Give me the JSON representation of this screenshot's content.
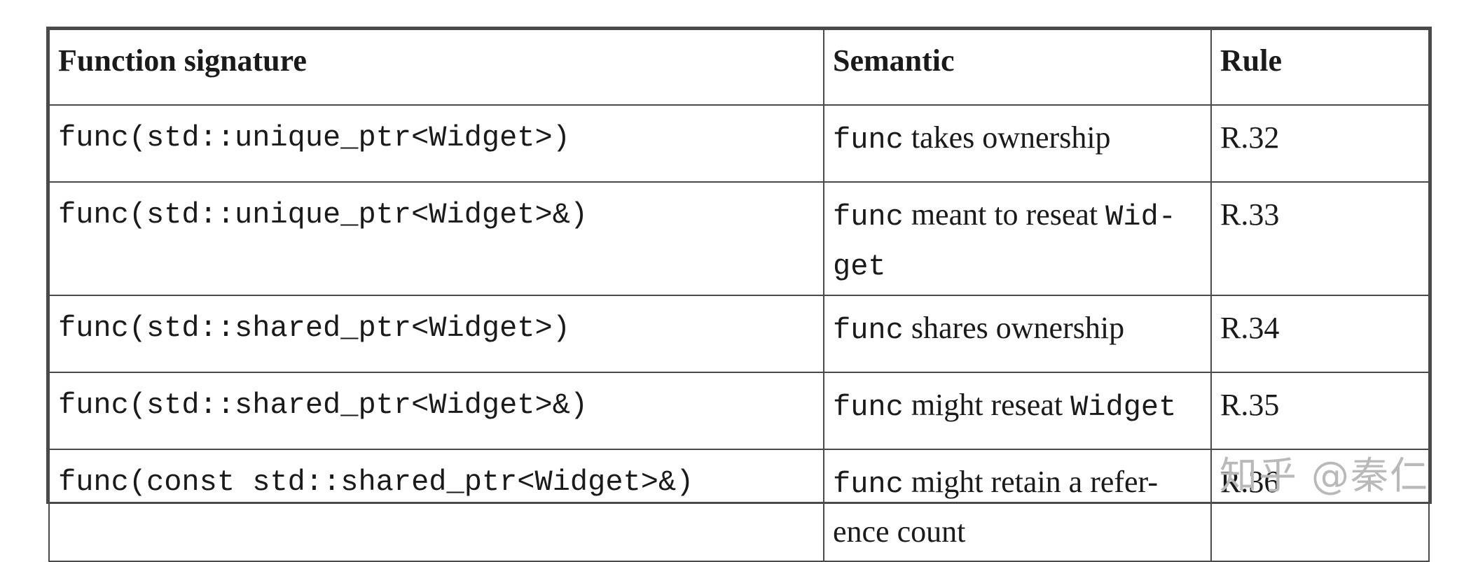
{
  "table": {
    "headers": [
      "Function signature",
      "Semantic",
      "Rule"
    ],
    "rows": [
      {
        "signature": "func(std::unique_ptr<Widget>)",
        "semantic_mono": "func",
        "semantic_text": " takes ownership",
        "semantic_mono2": "",
        "rule": "R.32"
      },
      {
        "signature": "func(std::unique_ptr<Widget>&)",
        "semantic_mono": "func",
        "semantic_text": " meant to reseat ",
        "semantic_mono2": "Wid-\nget",
        "rule": "R.33"
      },
      {
        "signature": "func(std::shared_ptr<Widget>)",
        "semantic_mono": "func",
        "semantic_text": " shares ownership",
        "semantic_mono2": "",
        "rule": "R.34"
      },
      {
        "signature": "func(std::shared_ptr<Widget>&)",
        "semantic_mono": "func",
        "semantic_text": " might reseat ",
        "semantic_mono2": "Widget",
        "rule": "R.35"
      },
      {
        "signature": "func(const std::shared_ptr<Widget>&)",
        "semantic_mono": "func",
        "semantic_text": " might retain a refer-\nence count",
        "semantic_mono2": "",
        "rule": "R.36"
      }
    ]
  },
  "watermark": "知乎 @秦仁"
}
